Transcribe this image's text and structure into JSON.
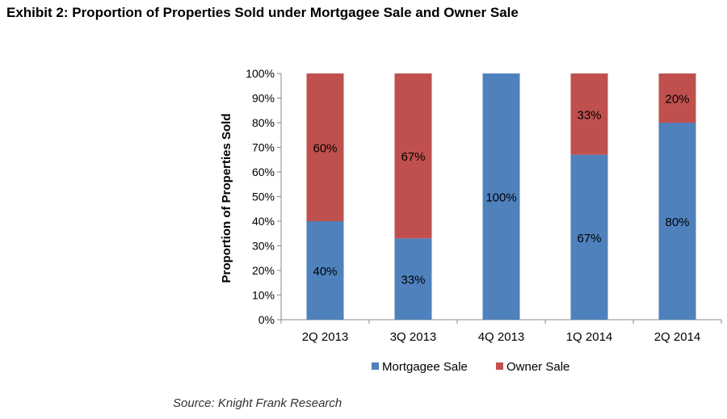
{
  "header": {
    "title": "Exhibit 2: Proportion of Properties Sold under Mortgagee Sale and Owner Sale"
  },
  "footer": {
    "source": "Source: Knight Frank Research"
  },
  "colors": {
    "mortgagee": "#4f81bd",
    "owner": "#c0504d",
    "axis": "#888888"
  },
  "chart_data": {
    "type": "bar",
    "stacked": true,
    "title": "Exhibit 2: Proportion of Properties Sold under Mortgagee Sale and Owner Sale",
    "categories": [
      "2Q 2013",
      "3Q 2013",
      "4Q 2013",
      "1Q 2014",
      "2Q 2014"
    ],
    "series": [
      {
        "name": "Mortgagee Sale",
        "values": [
          40,
          33,
          100,
          67,
          80
        ],
        "labels": [
          "40%",
          "33%",
          "100%",
          "67%",
          "80%"
        ]
      },
      {
        "name": "Owner Sale",
        "values": [
          60,
          67,
          0,
          33,
          20
        ],
        "labels": [
          "60%",
          "67%",
          "",
          "33%",
          "20%"
        ]
      }
    ],
    "xlabel": "",
    "ylabel": "Proportion of Properties Sold",
    "ylim": [
      0,
      100
    ],
    "yticks": [
      "0%",
      "10%",
      "20%",
      "30%",
      "40%",
      "50%",
      "60%",
      "70%",
      "80%",
      "90%",
      "100%"
    ],
    "grid": false,
    "legend": "bottom"
  }
}
